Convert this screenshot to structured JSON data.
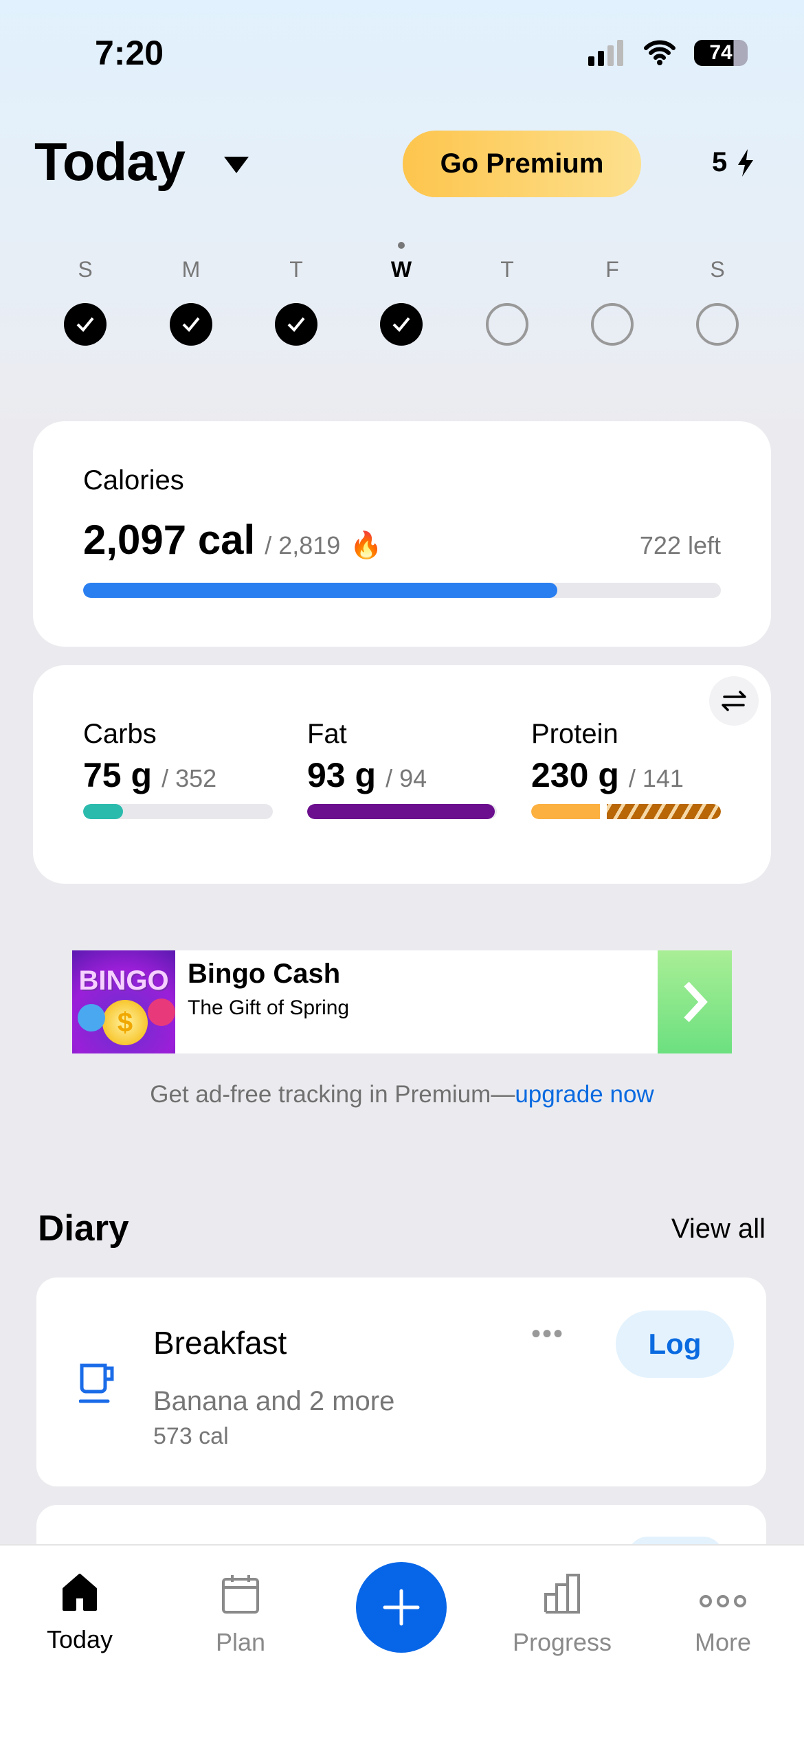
{
  "status": {
    "time": "7:20",
    "battery": "74"
  },
  "header": {
    "title": "Today",
    "premium_label": "Go Premium",
    "streak": "5"
  },
  "week": [
    {
      "letter": "S",
      "done": true
    },
    {
      "letter": "M",
      "done": true
    },
    {
      "letter": "T",
      "done": true
    },
    {
      "letter": "W",
      "done": true,
      "current": true
    },
    {
      "letter": "T",
      "done": false
    },
    {
      "letter": "F",
      "done": false
    },
    {
      "letter": "S",
      "done": false
    }
  ],
  "calories": {
    "label": "Calories",
    "eaten": "2,097 cal",
    "goal": "/ 2,819",
    "left": "722 left",
    "progress": 0.744,
    "color": "#2a7ff0"
  },
  "macros": [
    {
      "label": "Carbs",
      "value": "75 g",
      "goal": "/ 352",
      "progress": 0.21,
      "color": "#2bbbad"
    },
    {
      "label": "Fat",
      "value": "93 g",
      "goal": "/ 94",
      "progress": 0.99,
      "color": "#6b0f8e"
    },
    {
      "label": "Protein",
      "value": "230 g",
      "goal": "/ 141",
      "progress": 1.0,
      "color": "#fbb040",
      "over_color": "#b86606"
    }
  ],
  "ad": {
    "title": "Bingo Cash",
    "subtitle": "The Gift of Spring",
    "logo_text": "BINGO"
  },
  "upsell": {
    "text": "Get ad-free tracking in Premium—",
    "link": "upgrade now"
  },
  "diary": {
    "title": "Diary",
    "view_all": "View all",
    "meals": [
      {
        "name": "Breakfast",
        "summary": "Banana and 2 more",
        "calories": "573 cal",
        "log_label": "Log"
      }
    ]
  },
  "tabs": [
    {
      "label": "Today",
      "active": true
    },
    {
      "label": "Plan"
    },
    {
      "label": "Progress"
    },
    {
      "label": "More"
    }
  ]
}
